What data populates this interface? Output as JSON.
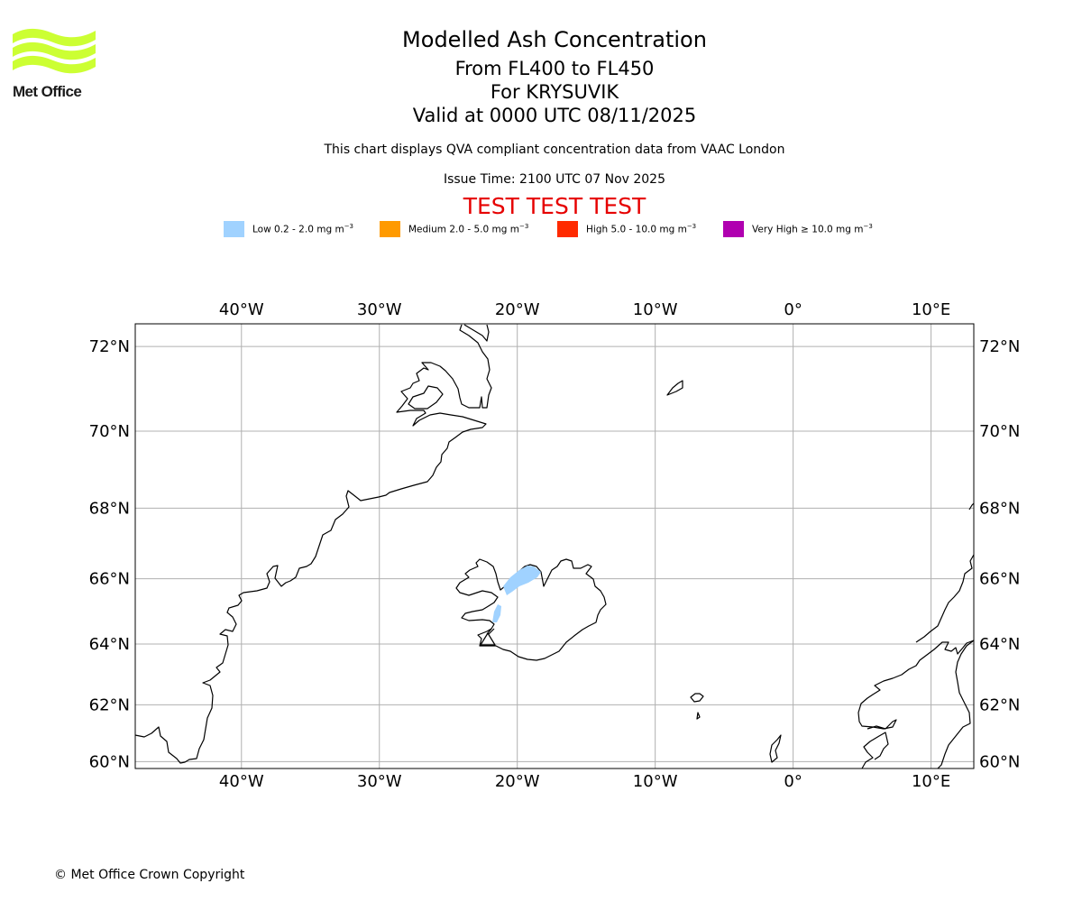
{
  "logo": {
    "brand": "Met Office",
    "color": "#ccff33"
  },
  "header": {
    "title": "Modelled Ash Concentration",
    "levels": "From FL400 to FL450",
    "volcano": "For KRYSUVIK",
    "valid": "Valid at 0000 UTC 08/11/2025",
    "description": "This chart displays QVA compliant concentration data from VAAC London",
    "issue_time": "Issue Time: 2100 UTC 07 Nov 2025",
    "test_banner": "TEST TEST TEST"
  },
  "legend": [
    {
      "label": "Low 0.2 - 2.0 mg m",
      "exp": "−3",
      "color": "#a0d2ff"
    },
    {
      "label": "Medium 2.0 - 5.0 mg m",
      "exp": "−3",
      "color": "#ff9a00"
    },
    {
      "label": "High 5.0 - 10.0 mg m",
      "exp": "−3",
      "color": "#ff2a00"
    },
    {
      "label": "Very High  ≥  10.0 mg m",
      "exp": "−3",
      "color": "#b000b0"
    }
  ],
  "map": {
    "lon_range": [
      -47.7,
      13.1
    ],
    "lat_range": [
      59.75,
      72.5
    ],
    "lon_ticks": [
      {
        "value": -40,
        "label": "40°W"
      },
      {
        "value": -30,
        "label": "30°W"
      },
      {
        "value": -20,
        "label": "20°W"
      },
      {
        "value": -10,
        "label": "10°W"
      },
      {
        "value": 0,
        "label": "0°"
      },
      {
        "value": 10,
        "label": "10°E"
      }
    ],
    "lat_ticks": [
      {
        "value": 60,
        "label": "60°N"
      },
      {
        "value": 62,
        "label": "62°N"
      },
      {
        "value": 64,
        "label": "64°N"
      },
      {
        "value": 66,
        "label": "66°N"
      },
      {
        "value": 68,
        "label": "68°N"
      },
      {
        "value": 70,
        "label": "70°N"
      },
      {
        "value": 72,
        "label": "72°N"
      }
    ],
    "volcano_name": "KRYSUVIK",
    "volcano_location": {
      "lon": -21.9,
      "lat": 63.9
    },
    "ash_level": "Low"
  },
  "footer": {
    "copyright": "© Met Office Crown Copyright"
  }
}
